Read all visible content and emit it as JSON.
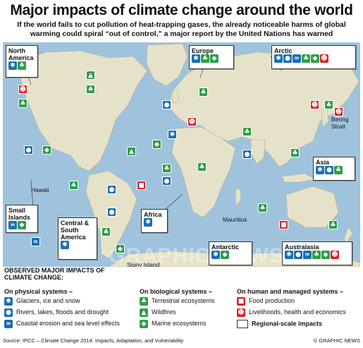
{
  "title": "Major impacts of climate change around the world",
  "subtitle": "If the world fails to cut pollution of heat-trapping gases, the already noticeable harms of global warming could spiral “out of control,” a major report by the United Nations has warned",
  "watermark": "GRAPHIC NEWS",
  "regions": {
    "north_america": "North America",
    "europe": "Europe",
    "arctic": "Arctic",
    "asia": "Asia",
    "small_islands": "Small Islands",
    "africa": "Africa",
    "central_south_america": "Central & South America",
    "antarctic": "Antarctic",
    "australasia": "Australasia"
  },
  "places": {
    "hawaii": "Hawaii",
    "bering": "Bering Strait",
    "mauritius": "Mauritius",
    "signy": "Signy Island"
  },
  "legend": {
    "heading": "OBSERVED MAJOR IMPACTS OF CLIMATE CHANGE:",
    "physical_title": "On physical systems –",
    "physical": [
      "Glaciers, ice and snow",
      "Rivers, lakes, floods and drought",
      "Coastal erosion and sea level effects"
    ],
    "biological_title": "On biological systems –",
    "biological": [
      "Terrestrial ecosystems",
      "Wildfires",
      "Marine ecosystems"
    ],
    "human_title": "On human and managed systems –",
    "human": [
      "Food production",
      "Livelihoods, health and economics"
    ],
    "regional": "Regional-scale impacts"
  },
  "footer": {
    "source": "Source: IPCC – Climate Change 2014: Impacts, Adaptation, and Vulnerability",
    "credit": "© GRAPHIC NEWS"
  },
  "icons": {
    "glacier": "snowflake-icon",
    "river": "water-drop-icon",
    "coastal": "wave-icon",
    "terrestrial": "tree-icon",
    "wildfire": "flame-icon",
    "marine": "fish-icon",
    "food": "tractor-icon",
    "livelihood": "people-icon"
  },
  "colors": {
    "physical": "#1a6fb4",
    "biological": "#2e9e4a",
    "human": "#d8222a",
    "sea": "#9fc3dd",
    "land": "#e6e2c9"
  }
}
